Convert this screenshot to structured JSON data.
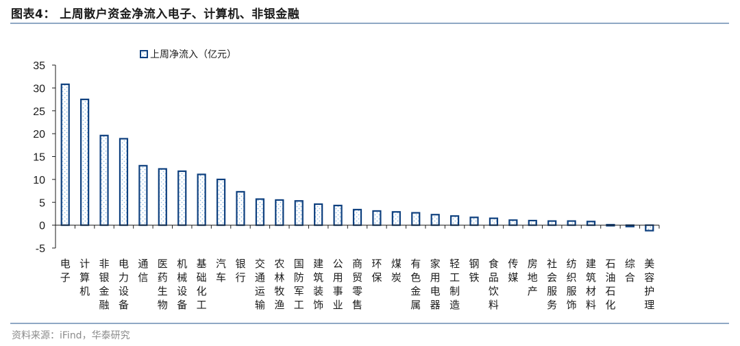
{
  "header": {
    "title": "图表4：  上周散户资金净流入电子、计算机、非银金融"
  },
  "footer": {
    "source": "资料来源：iFind，华泰研究"
  },
  "colors": {
    "bar_border": "#0d3f7e",
    "bar_dots": "#7fb0e0",
    "axis": "#1a1a1a",
    "rule": "#8ea7c4"
  },
  "chart_data": {
    "type": "bar",
    "title": "",
    "xlabel": "",
    "ylabel": "",
    "ylim": [
      -5,
      35
    ],
    "yticks": [
      -5,
      0,
      5,
      10,
      15,
      20,
      25,
      30,
      35
    ],
    "grid": false,
    "legend_position": "top",
    "series": [
      {
        "name": "上周净流入（亿元）",
        "values": [
          30.8,
          27.5,
          19.6,
          18.9,
          13.0,
          12.3,
          11.8,
          11.1,
          10.0,
          7.3,
          5.7,
          5.5,
          5.3,
          4.6,
          4.3,
          3.4,
          3.1,
          2.9,
          2.7,
          2.3,
          2.0,
          1.7,
          1.5,
          1.1,
          1.0,
          0.9,
          0.9,
          0.8,
          0.1,
          -0.3,
          -1.2
        ]
      }
    ],
    "categories": [
      "电子",
      "计算机",
      "非银金融",
      "电力设备",
      "通信",
      "医药生物",
      "机械设备",
      "基础化工",
      "汽车",
      "银行",
      "交通运输",
      "农林牧渔",
      "国防军工",
      "建筑装饰",
      "公用事业",
      "商贸零售",
      "环保",
      "煤炭",
      "有色金属",
      "家用电器",
      "轻工制造",
      "钢铁",
      "食品饮料",
      "传媒",
      "房地产",
      "社会服务",
      "纺织服饰",
      "建筑材料",
      "石油石化",
      "综合",
      "美容护理"
    ]
  }
}
